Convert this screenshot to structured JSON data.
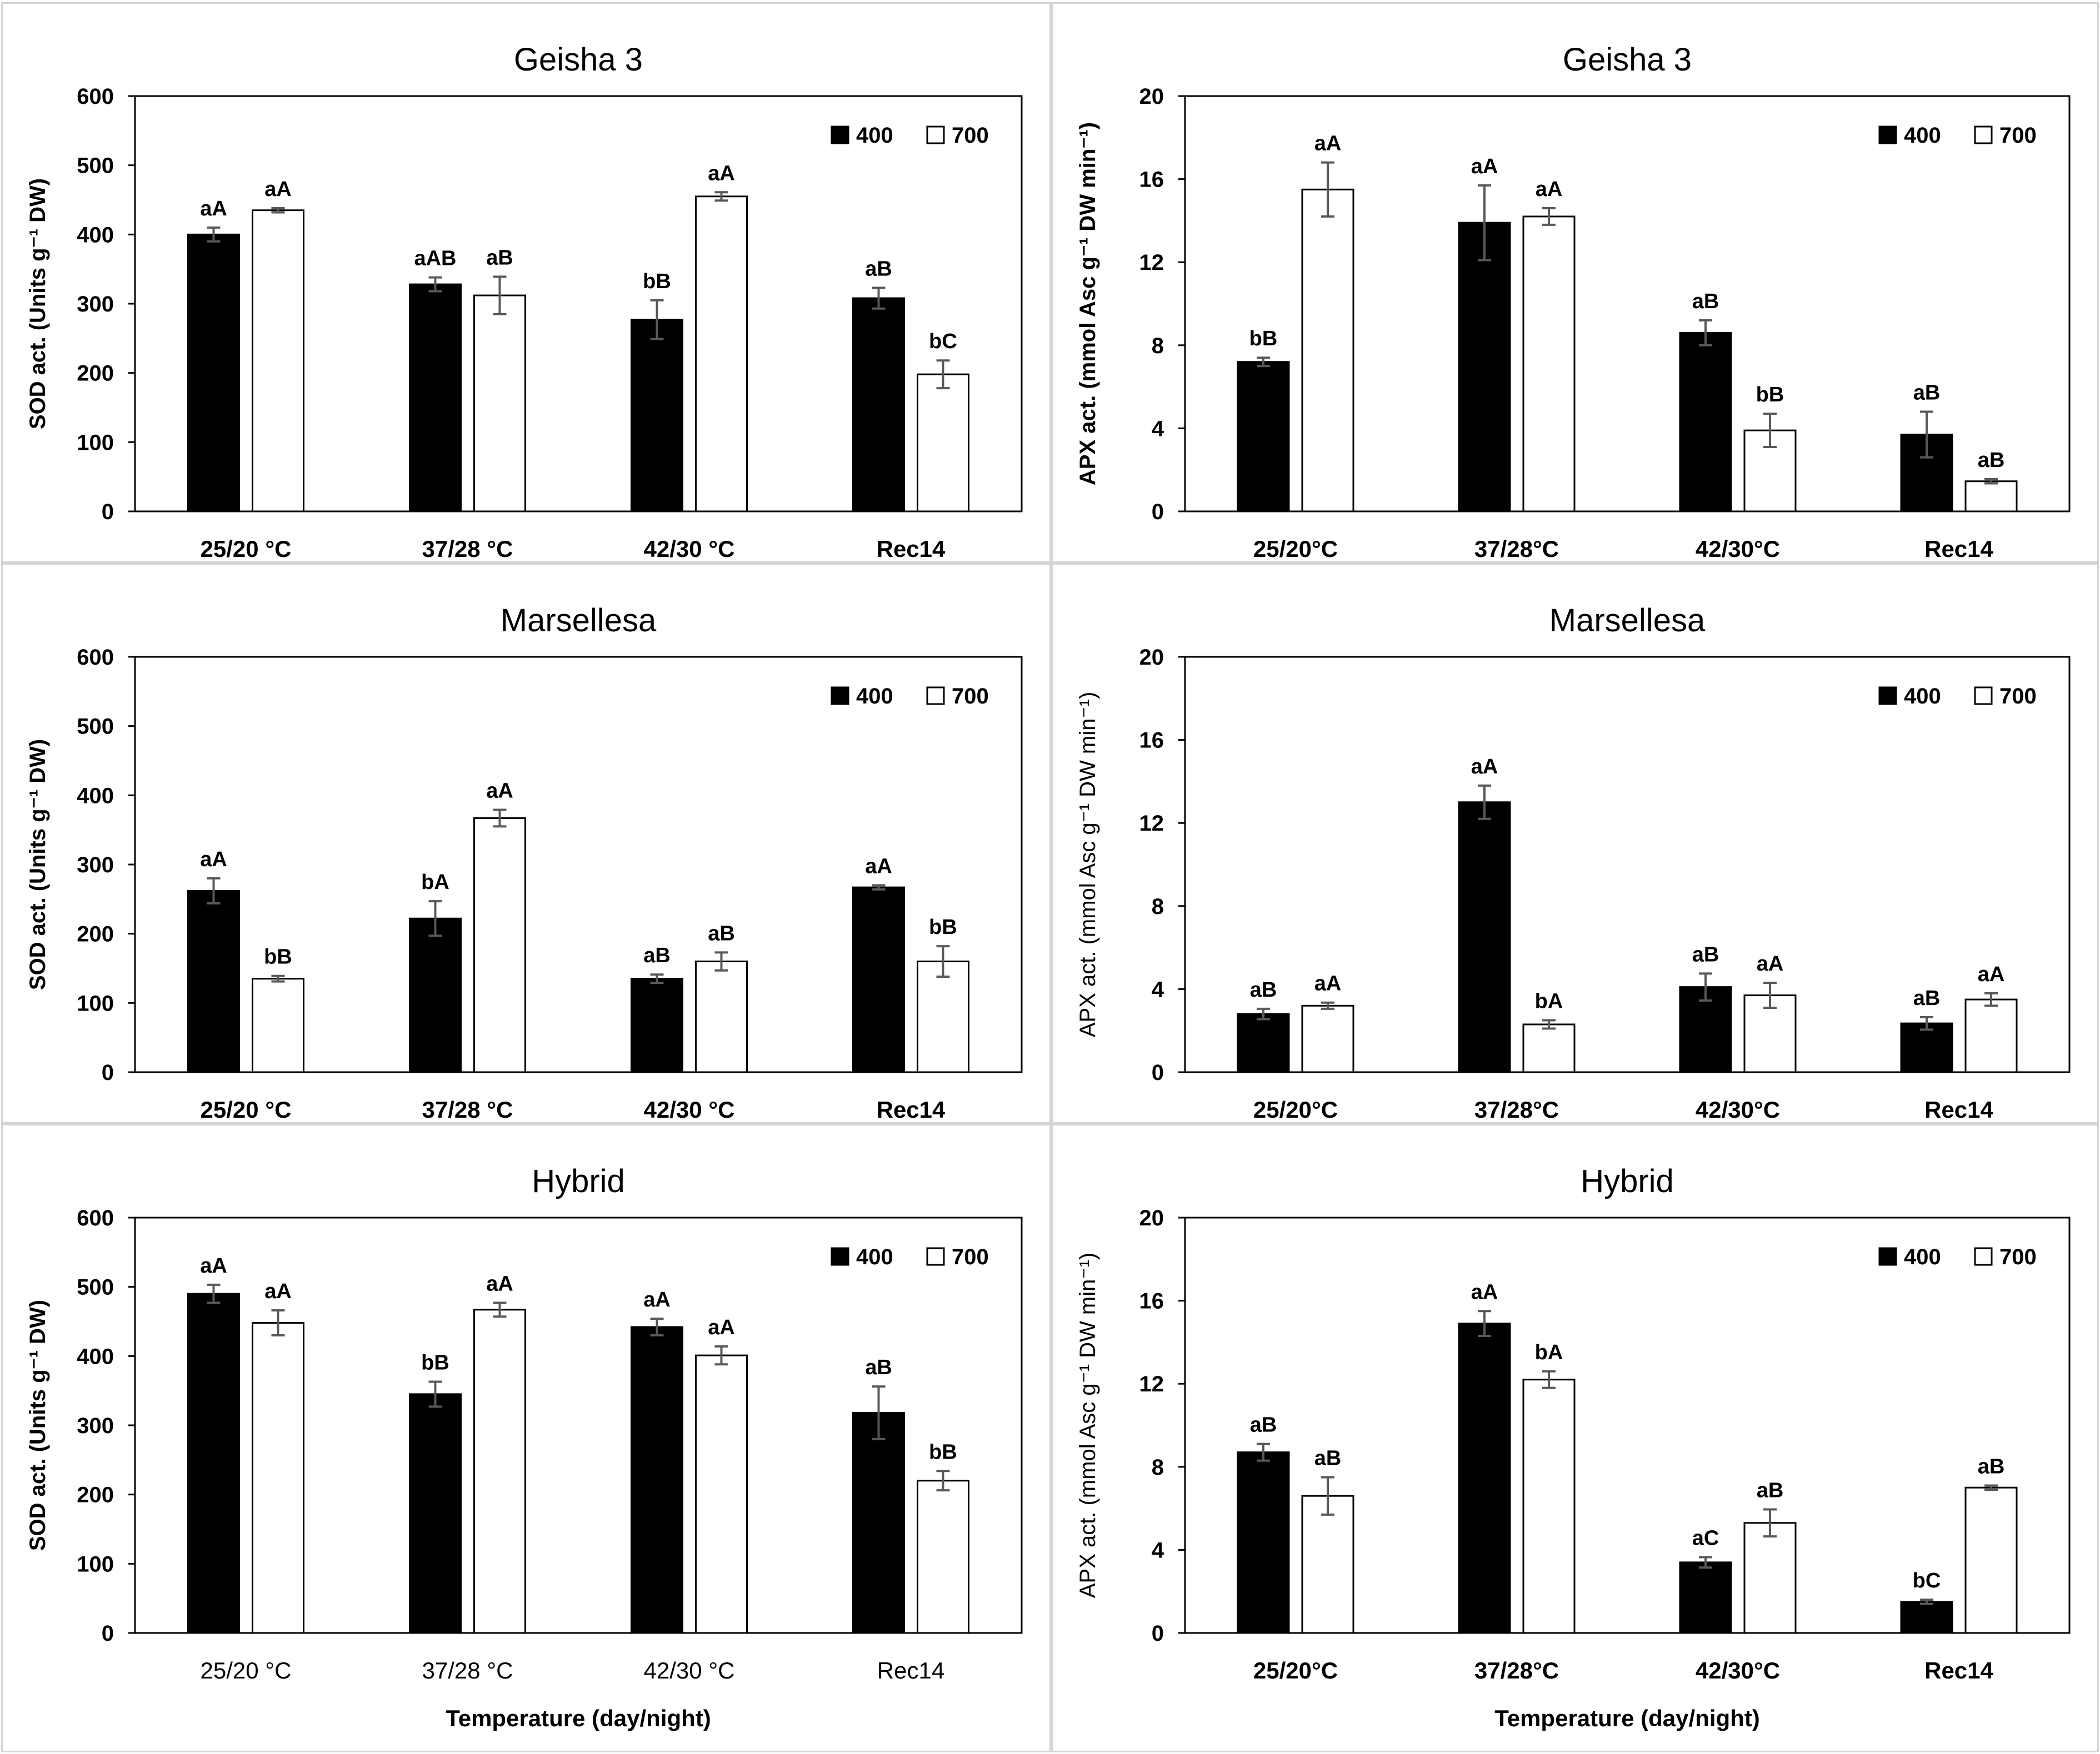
{
  "figure": {
    "background": "#ffffff",
    "panel_border": "#d4d4d4",
    "bar_400_color": "#000000",
    "bar_700_color": "#ffffff",
    "error_color": "#595959"
  },
  "chart_data": [
    {
      "type": "bar",
      "title": "Geisha 3",
      "ylabel": "SOD act. (Units g⁻¹ DW)",
      "ylabel_bold": true,
      "xlabel": "",
      "ylim": [
        0,
        600
      ],
      "yticks": [
        "0",
        "100",
        "200",
        "300",
        "400",
        "500",
        "600"
      ],
      "categories": [
        "25/20 °C",
        "37/28 °C",
        "42/30 °C",
        "Rec14"
      ],
      "categories_bold": true,
      "legend": {
        "placement": "top-right",
        "entries": [
          "400",
          "700"
        ]
      },
      "series": [
        {
          "name": "400",
          "values": [
            400,
            328,
            277,
            308
          ],
          "errors": [
            10,
            10,
            28,
            15
          ],
          "labels": [
            "aA",
            "aAB",
            "bB",
            "aB"
          ]
        },
        {
          "name": "700",
          "values": [
            435,
            312,
            455,
            198
          ],
          "errors": [
            3,
            27,
            6,
            20
          ],
          "labels": [
            "aA",
            "aB",
            "aA",
            "bC"
          ]
        }
      ]
    },
    {
      "type": "bar",
      "title": "Geisha 3",
      "ylabel": "APX act. (mmol Asc  g⁻¹ DW min⁻¹)",
      "ylabel_bold": true,
      "xlabel": "",
      "ylim": [
        0,
        20
      ],
      "yticks": [
        "0",
        "4",
        "8",
        "12",
        "16",
        "20"
      ],
      "categories": [
        "25/20°C",
        "37/28°C",
        "42/30°C",
        "Rec14"
      ],
      "categories_bold": true,
      "legend": {
        "placement": "top-right",
        "entries": [
          "400",
          "700"
        ]
      },
      "series": [
        {
          "name": "400",
          "values": [
            7.2,
            13.9,
            8.6,
            3.7
          ],
          "errors": [
            0.2,
            1.8,
            0.6,
            1.1
          ],
          "labels": [
            "bB",
            "aA",
            "aB",
            "aB"
          ]
        },
        {
          "name": "700",
          "values": [
            15.5,
            14.2,
            3.9,
            1.45
          ],
          "errors": [
            1.3,
            0.4,
            0.8,
            0.1
          ],
          "labels": [
            "aA",
            "aA",
            "bB",
            "aB"
          ]
        }
      ]
    },
    {
      "type": "bar",
      "title": "Marsellesa",
      "ylabel": "SOD act. (Units g⁻¹ DW)",
      "ylabel_bold": true,
      "xlabel": "",
      "ylim": [
        0,
        600
      ],
      "yticks": [
        "0",
        "100",
        "200",
        "300",
        "400",
        "500",
        "600"
      ],
      "categories": [
        "25/20 °C",
        "37/28 °C",
        "42/30 °C",
        "Rec14"
      ],
      "categories_bold": true,
      "legend": {
        "placement": "top-right",
        "entries": [
          "400",
          "700"
        ]
      },
      "series": [
        {
          "name": "400",
          "values": [
            262,
            222,
            135,
            267
          ],
          "errors": [
            18,
            25,
            6,
            3
          ],
          "labels": [
            "aA",
            "bA",
            "aB",
            "aA"
          ]
        },
        {
          "name": "700",
          "values": [
            135,
            367,
            160,
            160
          ],
          "errors": [
            4,
            12,
            13,
            22
          ],
          "labels": [
            "bB",
            "aA",
            "aB",
            "bB"
          ]
        }
      ]
    },
    {
      "type": "bar",
      "title": "Marsellesa",
      "ylabel": "APX act. (mmol Asc  g⁻¹ DW min⁻¹)",
      "ylabel_bold": false,
      "xlabel": "",
      "ylim": [
        0,
        20
      ],
      "yticks": [
        "0",
        "4",
        "8",
        "12",
        "16",
        "20"
      ],
      "categories": [
        "25/20°C",
        "37/28°C",
        "42/30°C",
        "Rec14"
      ],
      "categories_bold": true,
      "legend": {
        "placement": "top-right",
        "entries": [
          "400",
          "700"
        ]
      },
      "series": [
        {
          "name": "400",
          "values": [
            2.8,
            13.0,
            4.1,
            2.35
          ],
          "errors": [
            0.25,
            0.8,
            0.65,
            0.3
          ],
          "labels": [
            "aB",
            "aA",
            "aB",
            "aB"
          ]
        },
        {
          "name": "700",
          "values": [
            3.2,
            2.3,
            3.7,
            3.5
          ],
          "errors": [
            0.15,
            0.2,
            0.6,
            0.3
          ],
          "labels": [
            "aA",
            "bA",
            "aA",
            "aA"
          ]
        }
      ]
    },
    {
      "type": "bar",
      "title": "Hybrid",
      "ylabel": "SOD act. (Units g⁻¹ DW)",
      "ylabel_bold": true,
      "xlabel": "Temperature (day/night)",
      "ylim": [
        0,
        600
      ],
      "yticks": [
        "0",
        "100",
        "200",
        "300",
        "400",
        "500",
        "600"
      ],
      "categories": [
        "25/20 °C",
        "37/28 °C",
        "42/30 °C",
        "Rec14"
      ],
      "categories_bold": false,
      "legend": {
        "placement": "top-right",
        "entries": [
          "400",
          "700"
        ]
      },
      "series": [
        {
          "name": "400",
          "values": [
            490,
            345,
            442,
            318
          ],
          "errors": [
            13,
            18,
            12,
            38
          ],
          "labels": [
            "aA",
            "bB",
            "aA",
            "aB"
          ]
        },
        {
          "name": "700",
          "values": [
            448,
            467,
            401,
            220
          ],
          "errors": [
            18,
            10,
            13,
            14
          ],
          "labels": [
            "aA",
            "aA",
            "aA",
            "bB"
          ]
        }
      ]
    },
    {
      "type": "bar",
      "title": "Hybrid",
      "ylabel": "APX act. (mmol Asc  g⁻¹ DW min⁻¹)",
      "ylabel_bold": false,
      "xlabel": "Temperature (day/night)",
      "ylim": [
        0,
        20
      ],
      "yticks": [
        "0",
        "4",
        "8",
        "12",
        "16",
        "20"
      ],
      "categories": [
        "25/20°C",
        "37/28°C",
        "42/30°C",
        "Rec14"
      ],
      "categories_bold": true,
      "legend": {
        "placement": "top-right",
        "entries": [
          "400",
          "700"
        ]
      },
      "series": [
        {
          "name": "400",
          "values": [
            8.7,
            14.9,
            3.4,
            1.5
          ],
          "errors": [
            0.4,
            0.6,
            0.25,
            0.1
          ],
          "labels": [
            "aB",
            "aA",
            "aC",
            "bC"
          ]
        },
        {
          "name": "700",
          "values": [
            6.6,
            12.2,
            5.3,
            7.0
          ],
          "errors": [
            0.9,
            0.4,
            0.65,
            0.1
          ],
          "labels": [
            "aB",
            "bA",
            "aB",
            "aB"
          ]
        }
      ]
    }
  ]
}
